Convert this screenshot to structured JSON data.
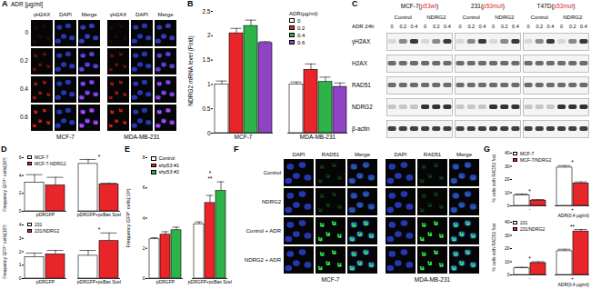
{
  "chart_data": [
    {
      "panel": "B",
      "type": "bar",
      "y_label": "NDRG2 mRNA level (Fold)",
      "legend_title": "ADR(μg/ml)",
      "categories": [
        "MCF-7",
        "MDA-MB-231"
      ],
      "series": [
        {
          "name": "0",
          "color": "#ffffff",
          "values": [
            1.0,
            1.0
          ],
          "errors": [
            0.07,
            0.05
          ]
        },
        {
          "name": "0.2",
          "color": "#e8262a",
          "values": [
            2.05,
            1.3
          ],
          "errors": [
            0.1,
            0.12
          ]
        },
        {
          "name": "0.4",
          "color": "#2db34a",
          "values": [
            2.2,
            1.05
          ],
          "errors": [
            0.12,
            0.1
          ]
        },
        {
          "name": "0.6",
          "color": "#8e44c4",
          "values": [
            1.85,
            0.95
          ],
          "errors": [
            0.03,
            0.08
          ]
        }
      ],
      "ylim": [
        0,
        2.5
      ],
      "yticks": [
        0,
        0.5,
        1,
        1.5,
        2,
        2.5
      ]
    },
    {
      "panel": "D",
      "type": "bar",
      "y_label": "Frequency GFP⁺ cells(10³)",
      "categories": [
        "pDRGFP",
        "pDRGFP+pcBas SceI"
      ],
      "series": [
        {
          "name": "MCF-7",
          "color": "#ffffff",
          "values": [
            3.2,
            5.3
          ],
          "errors": [
            0.9,
            0.5
          ]
        },
        {
          "name": "MCF-7-NDRG2",
          "color": "#e8262a",
          "values": [
            2.9,
            3.0
          ],
          "errors": [
            0.9,
            0.15
          ]
        }
      ],
      "ylim": [
        0,
        6
      ],
      "yticks": [
        0,
        2,
        4,
        6
      ],
      "annotations": [
        {
          "text": "*",
          "category": "pDRGFP+pcBas SceI"
        }
      ]
    },
    {
      "panel": "D",
      "type": "bar",
      "y_label": "Frequency GFP⁺ cells(10³)",
      "categories": [
        "pDRGFP",
        "pDRGFP+pcBas SceI"
      ],
      "series": [
        {
          "name": "231",
          "color": "#ffffff",
          "values": [
            1.6,
            1.7
          ],
          "errors": [
            0.3,
            0.4
          ]
        },
        {
          "name": "231/NDRG2",
          "color": "#e8262a",
          "values": [
            1.8,
            2.8
          ],
          "errors": [
            0.3,
            0.6
          ]
        }
      ],
      "ylim": [
        0,
        4
      ],
      "yticks": [
        0,
        1,
        2,
        3,
        4
      ],
      "annotations": [
        {
          "text": "*",
          "category": "pDRGFP+pcBas SceI"
        }
      ]
    },
    {
      "panel": "E",
      "type": "bar",
      "y_label": "Frequency GFP⁺ cells(10³)",
      "categories": [
        "pDRGFP",
        "pDRGFP+pcBas SceI"
      ],
      "series": [
        {
          "name": "Control",
          "color": "#ffffff",
          "values": [
            2.6,
            3.6
          ],
          "errors": [
            0.1,
            0.15
          ]
        },
        {
          "name": "shp53 #1",
          "color": "#e8262a",
          "values": [
            2.9,
            5.0
          ],
          "errors": [
            0.2,
            0.5
          ]
        },
        {
          "name": "shp53 #2",
          "color": "#2db34a",
          "values": [
            3.2,
            5.8
          ],
          "errors": [
            0.2,
            0.6
          ]
        }
      ],
      "ylim": [
        0,
        8
      ],
      "yticks": [
        0,
        2,
        4,
        6,
        8
      ],
      "annotations": [
        {
          "text": "**",
          "category": "pDRGFP+pcBas SceI"
        },
        {
          "text": "*",
          "category": "pDRGFP+pcBas SceI"
        }
      ]
    },
    {
      "panel": "G",
      "type": "bar",
      "y_label": "% cells with RAD51 foci",
      "x_label": "ADR(0.4 μg/ml)",
      "categories": [
        "-",
        "+"
      ],
      "series": [
        {
          "name": "MCF-7",
          "color": "#ffffff",
          "values": [
            8,
            29
          ],
          "errors": [
            1,
            1.5
          ]
        },
        {
          "name": "MCF-7/NDRG2",
          "color": "#e8262a",
          "values": [
            4,
            17
          ],
          "errors": [
            0.8,
            1.2
          ]
        }
      ],
      "ylim": [
        0,
        40
      ],
      "yticks": [
        0,
        10,
        20,
        30,
        40
      ],
      "annotations": [
        {
          "text": "*",
          "category": "-"
        },
        {
          "text": "*",
          "category": "+"
        }
      ]
    },
    {
      "panel": "G",
      "type": "bar",
      "y_label": "% cells with RAD51 foci",
      "x_label": "ADR(0.4 μg/ml)",
      "categories": [
        "-",
        "+"
      ],
      "series": [
        {
          "name": "231",
          "color": "#ffffff",
          "values": [
            5,
            18
          ],
          "errors": [
            0.8,
            1.5
          ]
        },
        {
          "name": "231/NDRG2",
          "color": "#e8262a",
          "values": [
            9,
            33
          ],
          "errors": [
            1,
            1.5
          ]
        }
      ],
      "ylim": [
        0,
        40
      ],
      "yticks": [
        0,
        10,
        20,
        30,
        40
      ],
      "annotations": [
        {
          "text": "*",
          "category": "-"
        },
        {
          "text": "**",
          "category": "+"
        }
      ]
    }
  ],
  "panel_A": {
    "letter": "A",
    "title": "ADR [μg/ml]",
    "rows": [
      "0",
      "0.2",
      "0.4",
      "0.6"
    ],
    "columns": [
      "γH2AX",
      "DAPI",
      "Merge"
    ],
    "groups": [
      "MCF-7",
      "MDA-MB-231"
    ]
  },
  "panel_C": {
    "letter": "C",
    "headers": [
      {
        "label": "MCF-7(p53wt)",
        "highlight": "p53wt"
      },
      {
        "label": "231(p53mut)",
        "highlight": "p53mut"
      },
      {
        "label": "T47D(p53mut)",
        "highlight": "p53mut"
      }
    ],
    "treatment_label": "ADR 24h",
    "subgroups": [
      "Control",
      "NDRG2"
    ],
    "doses": [
      "0",
      "0.2",
      "0.4"
    ],
    "rows": [
      "γH2AX",
      "H2AX",
      "RAD51",
      "NDRG2",
      "β-actin"
    ]
  },
  "panel_F": {
    "letter": "F",
    "rows": [
      "Control",
      "NDRG2",
      "Control + ADR",
      "NDRG2 + ADR"
    ],
    "columns": [
      "DAPI",
      "RAD51",
      "Merge"
    ],
    "groups": [
      "MCF-7",
      "MDA-MB-231"
    ]
  }
}
